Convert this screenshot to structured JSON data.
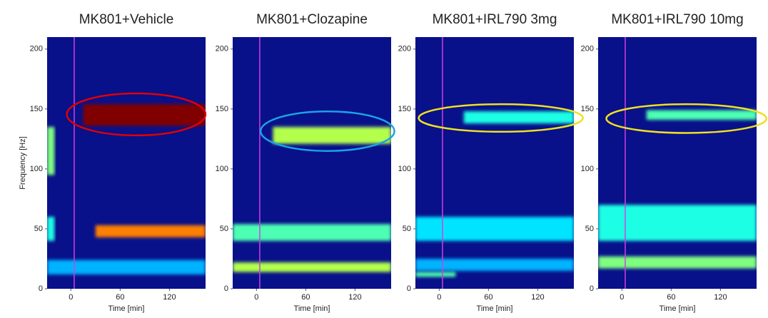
{
  "chart_data": [
    {
      "type": "spectrogram",
      "title": "MK801+Vehicle",
      "xlabel": "Time [min]",
      "ylabel": "Frequency [Hz]",
      "xlim": [
        -29,
        164
      ],
      "ylim": [
        0,
        210
      ],
      "xticks": [
        0,
        60,
        120
      ],
      "yticks": [
        0,
        50,
        100,
        150,
        200
      ],
      "marker_x": 4,
      "marker_color": "#d040e0",
      "bands": [
        {
          "t": [
            -29,
            -20
          ],
          "f": 115,
          "w": 40,
          "i": 0.5
        },
        {
          "t": [
            -29,
            -20
          ],
          "f": 50,
          "w": 20,
          "i": 0.4
        },
        {
          "t": [
            -29,
            164
          ],
          "f": 18,
          "w": 12,
          "i": 0.3
        },
        {
          "t": [
            30,
            164
          ],
          "f": 48,
          "w": 10,
          "i": 0.75
        },
        {
          "t": [
            15,
            164
          ],
          "f": 145,
          "w": 18,
          "i": 1.0
        }
      ],
      "highlight": {
        "color": "#e00000",
        "t": [
          -5,
          164
        ],
        "f": [
          128,
          163
        ]
      }
    },
    {
      "type": "spectrogram",
      "title": "MK801+Clozapine",
      "xlabel": "Time [min]",
      "xlim": [
        -29,
        164
      ],
      "ylim": [
        0,
        210
      ],
      "xticks": [
        0,
        60,
        120
      ],
      "yticks": [
        0,
        50,
        100,
        150,
        200
      ],
      "marker_x": 4,
      "marker_color": "#d040e0",
      "bands": [
        {
          "t": [
            -29,
            164
          ],
          "f": 47,
          "w": 14,
          "i": 0.45
        },
        {
          "t": [
            -29,
            164
          ],
          "f": 18,
          "w": 8,
          "i": 0.55
        },
        {
          "t": [
            20,
            164
          ],
          "f": 128,
          "w": 14,
          "i": 0.55
        }
      ],
      "highlight": {
        "color": "#1aa3e8",
        "t": [
          5,
          168
        ],
        "f": [
          115,
          148
        ]
      }
    },
    {
      "type": "spectrogram",
      "title": "MK801+IRL790 3mg",
      "xlabel": "Time [min]",
      "xlim": [
        -29,
        164
      ],
      "ylim": [
        0,
        210
      ],
      "xticks": [
        0,
        60,
        120
      ],
      "yticks": [
        0,
        50,
        100,
        150,
        200
      ],
      "marker_x": 4,
      "marker_color": "#d040e0",
      "bands": [
        {
          "t": [
            -29,
            164
          ],
          "f": 50,
          "w": 20,
          "i": 0.35
        },
        {
          "t": [
            -29,
            164
          ],
          "f": 20,
          "w": 10,
          "i": 0.3
        },
        {
          "t": [
            -29,
            20
          ],
          "f": 12,
          "w": 4,
          "i": 0.45
        },
        {
          "t": [
            30,
            164
          ],
          "f": 143,
          "w": 10,
          "i": 0.4
        }
      ],
      "highlight": {
        "color": "#f0e020",
        "t": [
          -25,
          175
        ],
        "f": [
          131,
          154
        ]
      }
    },
    {
      "type": "spectrogram",
      "title": "MK801+IRL790 10mg",
      "xlabel": "Time [min]",
      "xlim": [
        -29,
        164
      ],
      "ylim": [
        0,
        210
      ],
      "xticks": [
        0,
        60,
        120
      ],
      "yticks": [
        0,
        50,
        100,
        150,
        200
      ],
      "marker_x": 4,
      "marker_color": "#d040e0",
      "bands": [
        {
          "t": [
            -29,
            164
          ],
          "f": 55,
          "w": 30,
          "i": 0.4
        },
        {
          "t": [
            -29,
            164
          ],
          "f": 22,
          "w": 10,
          "i": 0.5
        },
        {
          "t": [
            30,
            164
          ],
          "f": 145,
          "w": 8,
          "i": 0.45
        }
      ],
      "highlight": {
        "color": "#f0e020",
        "t": [
          -19,
          176
        ],
        "f": [
          130,
          154
        ]
      }
    }
  ]
}
